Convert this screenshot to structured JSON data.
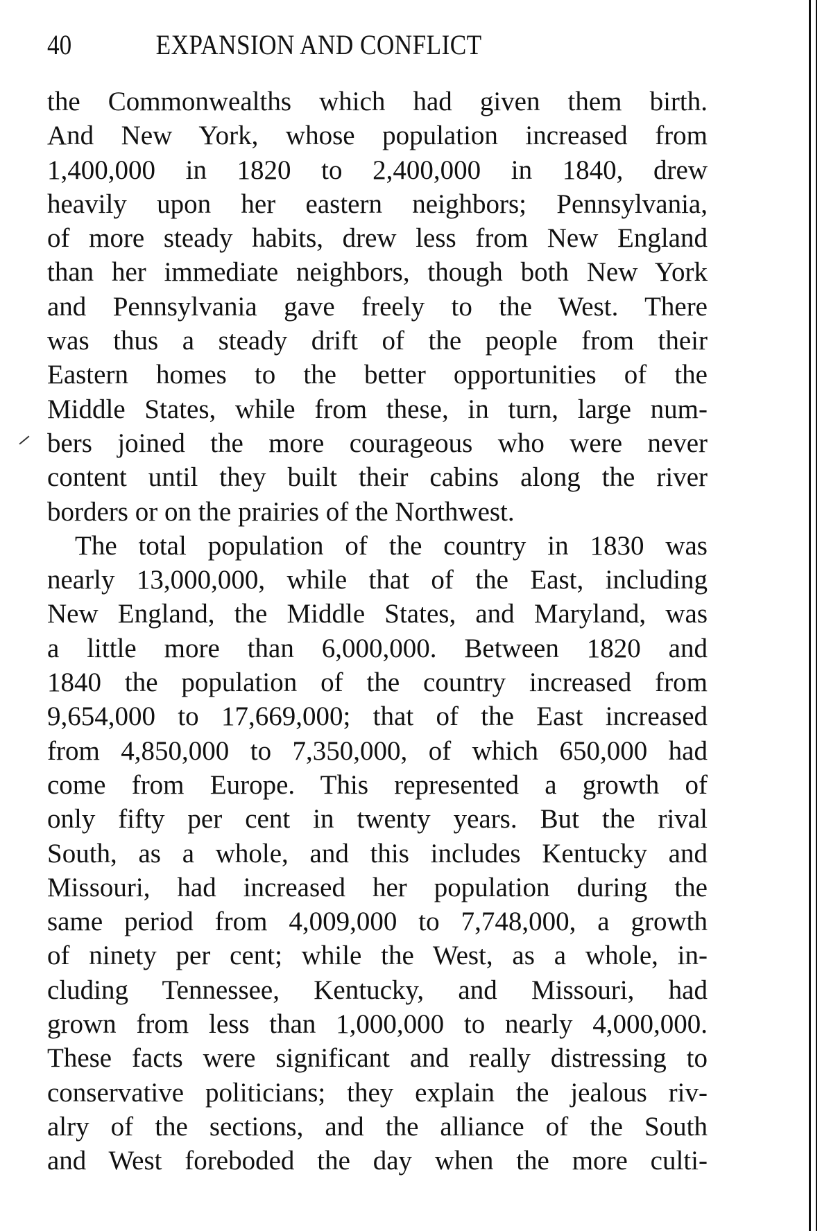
{
  "header": {
    "page_number": "40",
    "running_title": "EXPANSION AND CONFLICT"
  },
  "paragraphs": [
    {
      "lines": [
        "the Commonwealths which had given them birth.",
        "And New York, whose population increased from",
        "1,400,000 in 1820 to 2,400,000 in 1840, drew",
        "heavily upon her eastern neighbors; Pennsylvania,",
        "of more steady habits, drew less from New England",
        "than her immediate neighbors, though both New York",
        "and Pennsylvania gave freely to the West. There",
        "was thus a steady drift of the people from their",
        "Eastern homes to the better opportunities of the",
        "Middle States, while from these, in turn, large num-",
        "bers joined the more courageous who were never",
        "content until they built their cabins along the river",
        "borders or on the prairies of the Northwest."
      ]
    },
    {
      "lines": [
        "The total population of the country in 1830 was",
        "nearly 13,000,000, while that of the East, including",
        "New England, the Middle States, and Maryland, was",
        "a little more than 6,000,000. Between 1820 and",
        "1840 the population of the country increased from",
        "9,654,000 to 17,669,000; that of the East increased",
        "from 4,850,000 to 7,350,000, of which 650,000 had",
        "come from Europe. This represented a growth of",
        "only fifty per cent in twenty years. But the rival",
        "South, as a whole, and this includes Kentucky and",
        "Missouri, had increased her population during the",
        "same period from 4,009,000 to 7,748,000, a growth",
        "of ninety per cent; while the West, as a whole, in-",
        "cluding Tennessee, Kentucky, and Missouri, had",
        "grown from less than 1,000,000 to nearly 4,000,000.",
        "These facts were significant and really distressing to",
        "conservative politicians; they explain the jealous riv-",
        "alry of the sections, and the alliance of the South",
        "and West foreboded the day when the more culti-"
      ]
    }
  ]
}
